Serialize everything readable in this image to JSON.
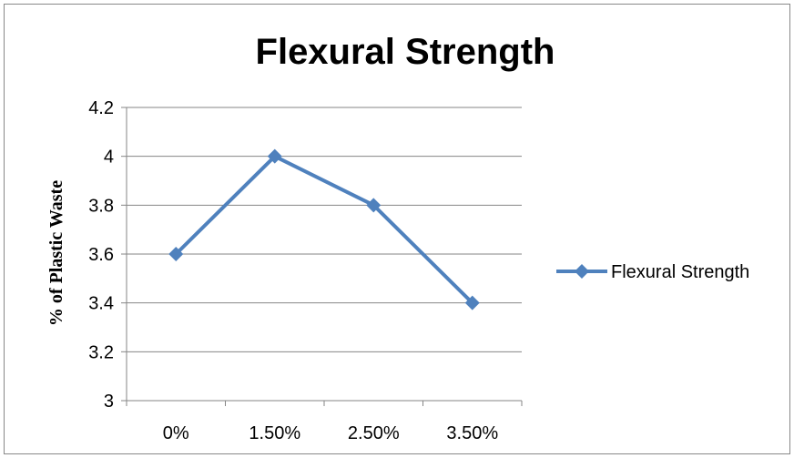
{
  "chart_data": {
    "type": "line",
    "title": "Flexural Strength",
    "xlabel": "",
    "ylabel": "% of Plastic Waste",
    "categories": [
      "0%",
      "1.50%",
      "2.50%",
      "3.50%"
    ],
    "series": [
      {
        "name": "Flexural Strength",
        "values": [
          3.6,
          4.0,
          3.8,
          3.4
        ]
      }
    ],
    "ylim": [
      3,
      4.2
    ],
    "yticks": [
      "3",
      "3.2",
      "3.4",
      "3.6",
      "3.8",
      "4",
      "4.2"
    ],
    "grid": true,
    "legend": "right",
    "colors": {
      "series": "#4F81BD",
      "grid": "#868686",
      "axis": "#868686"
    },
    "marker": "diamond"
  }
}
